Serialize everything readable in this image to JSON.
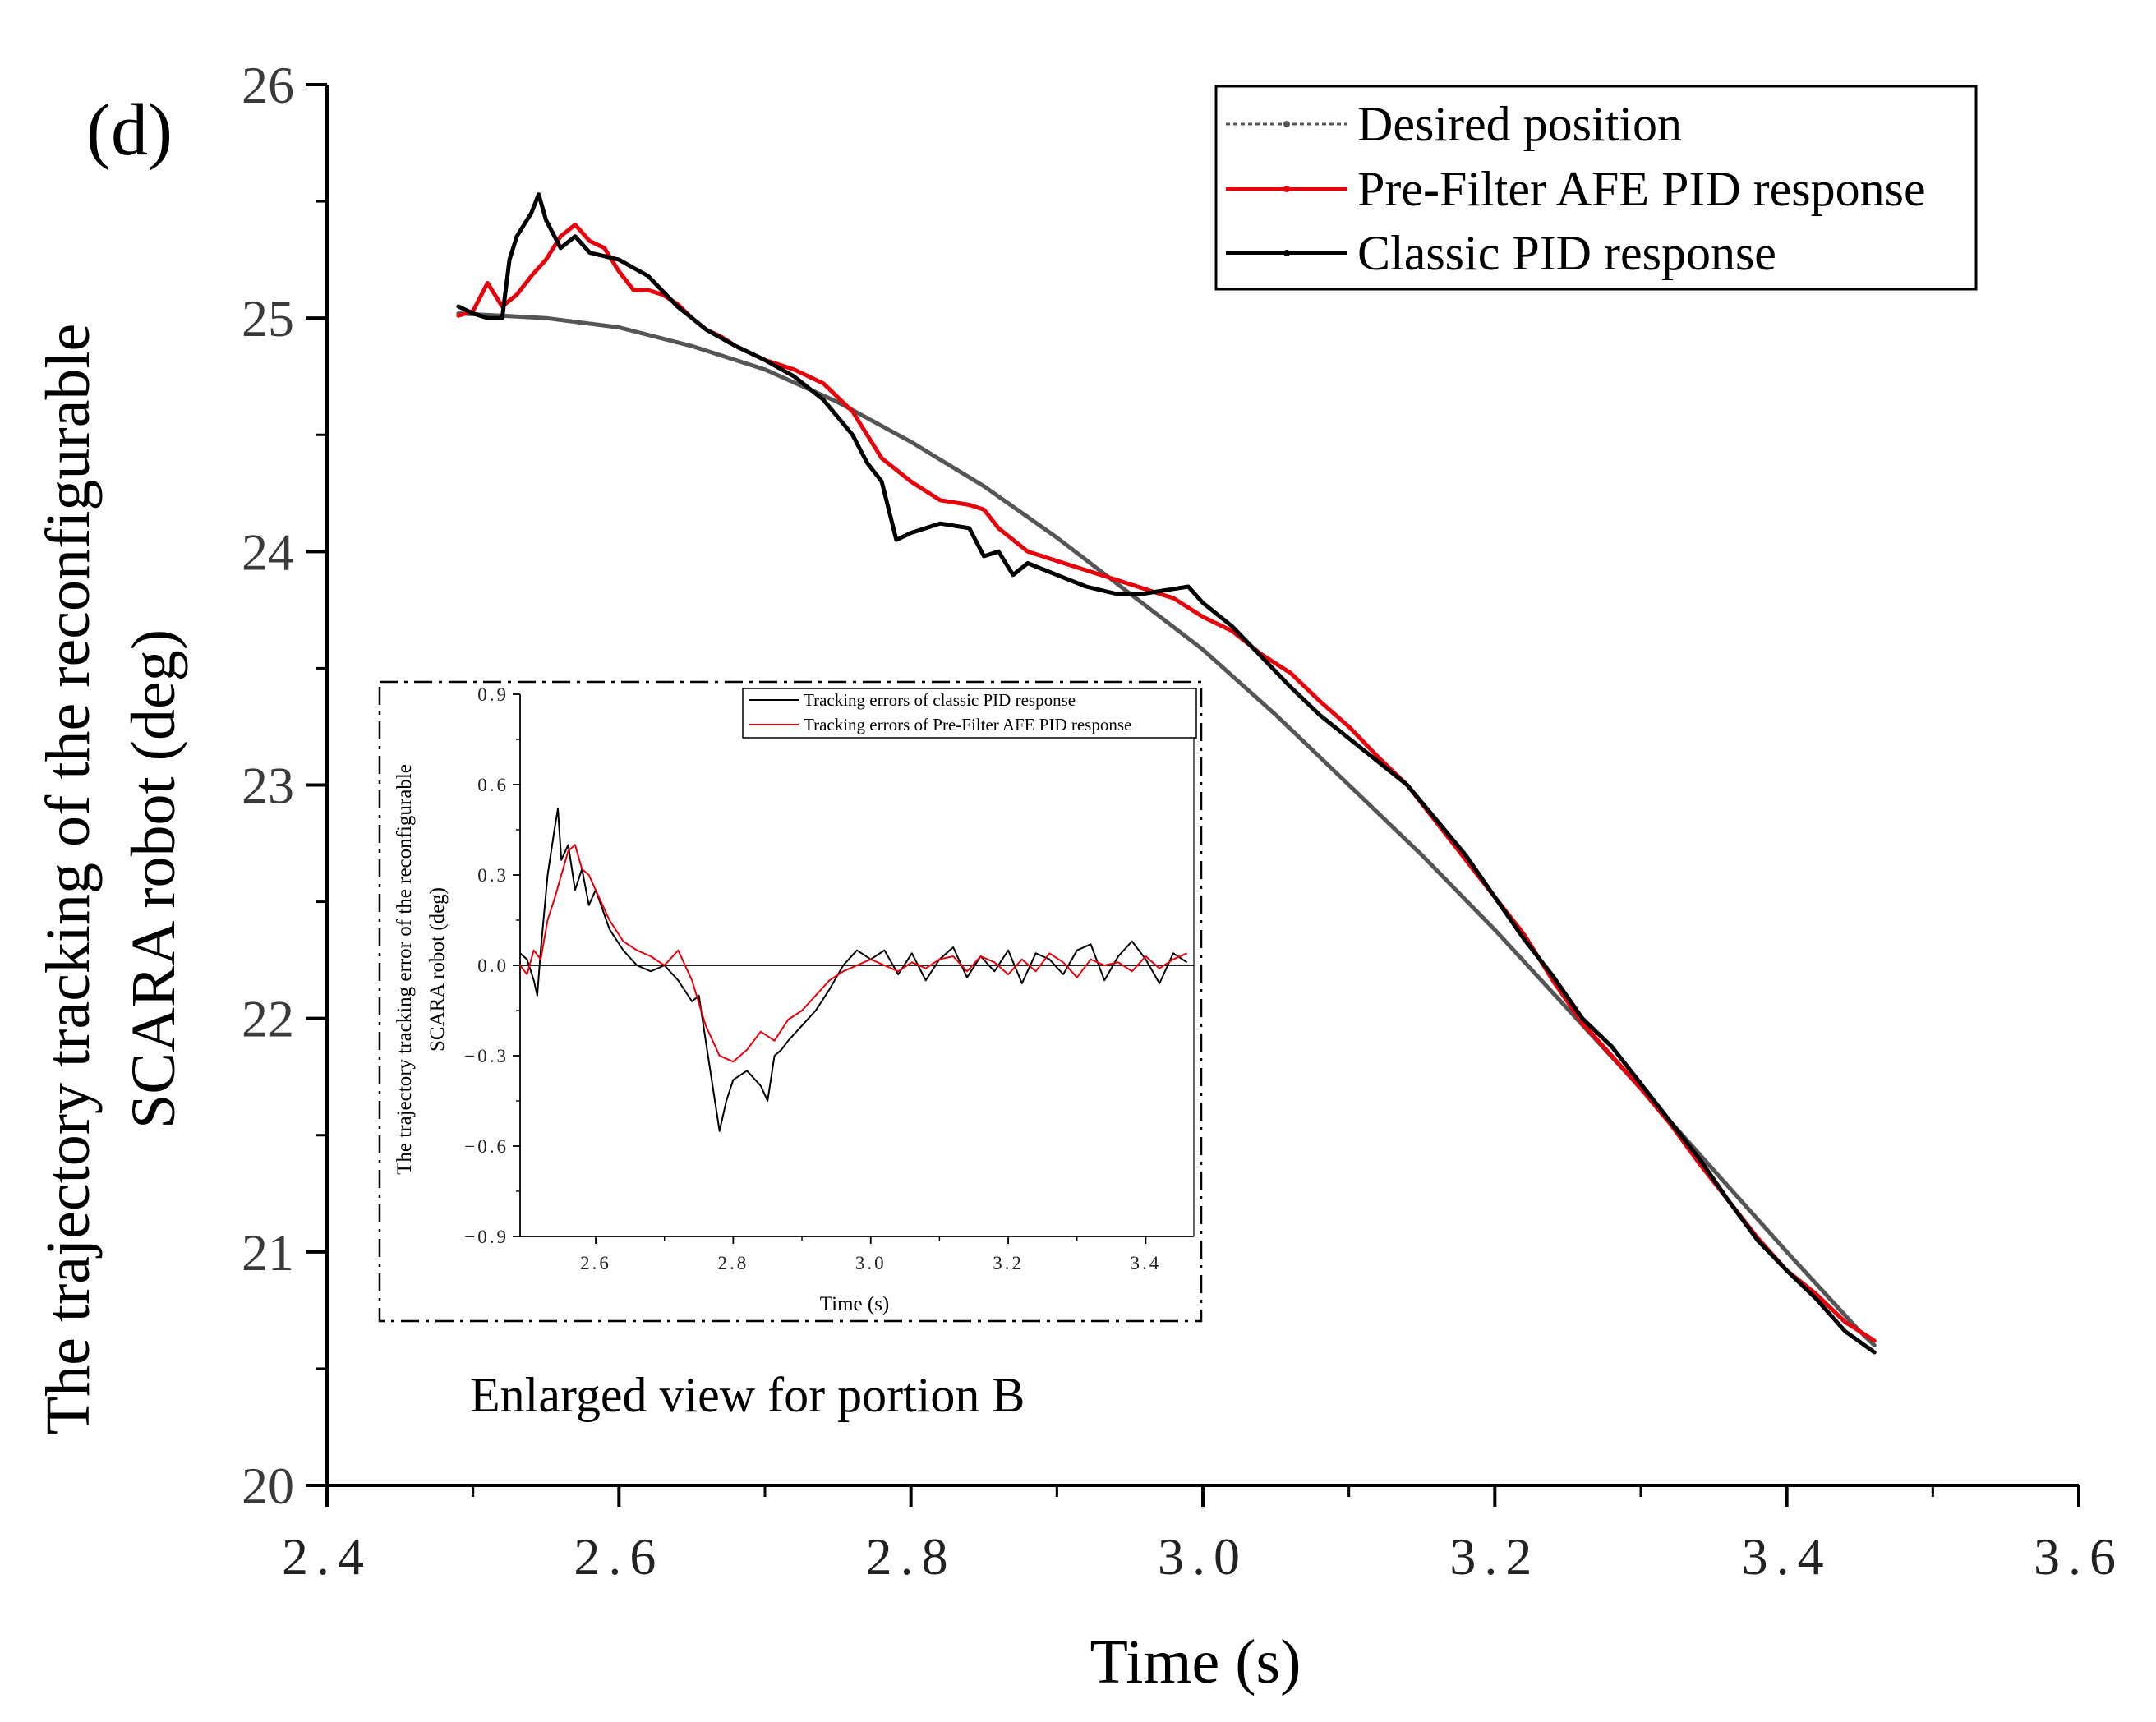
{
  "chart_data": [
    {
      "type": "line",
      "panel_label": "(d)",
      "title": "",
      "xlabel": "Time (s)",
      "ylabel_lines": [
        "The trajectory tracking of the reconfigurable",
        "SCARA robot (deg)"
      ],
      "xlim": [
        2.4,
        3.6
      ],
      "ylim": [
        20,
        26
      ],
      "xticks": [
        2.4,
        2.6,
        2.8,
        3.0,
        3.2,
        3.4,
        3.6
      ],
      "xtick_labels": [
        "2.4",
        "2.6",
        "2.8",
        "3.0",
        "3.2",
        "3.4",
        "3.6"
      ],
      "yticks": [
        20,
        21,
        22,
        23,
        24,
        25,
        26
      ],
      "ytick_labels": [
        "20",
        "21",
        "22",
        "23",
        "24",
        "25",
        "26"
      ],
      "legend_position": "top-right",
      "series": [
        {
          "name": "Desired position",
          "color": "#555555",
          "style": "dotted-marker",
          "x": [
            2.49,
            2.55,
            2.6,
            2.65,
            2.7,
            2.75,
            2.8,
            2.85,
            2.9,
            2.95,
            3.0,
            3.05,
            3.1,
            3.15,
            3.2,
            3.25,
            3.3,
            3.35,
            3.4,
            3.45,
            3.46
          ],
          "y": [
            25.02,
            25.0,
            24.96,
            24.88,
            24.78,
            24.64,
            24.47,
            24.28,
            24.06,
            23.82,
            23.58,
            23.3,
            23.0,
            22.7,
            22.38,
            22.04,
            21.7,
            21.35,
            21.0,
            20.66,
            20.6
          ]
        },
        {
          "name": "Pre-Filter AFE PID response",
          "color": "#e8000b",
          "style": "solid-marker",
          "x": [
            2.49,
            2.5,
            2.51,
            2.52,
            2.53,
            2.54,
            2.55,
            2.56,
            2.57,
            2.58,
            2.59,
            2.6,
            2.61,
            2.62,
            2.63,
            2.64,
            2.65,
            2.66,
            2.67,
            2.68,
            2.69,
            2.7,
            2.72,
            2.74,
            2.76,
            2.77,
            2.78,
            2.8,
            2.82,
            2.84,
            2.85,
            2.86,
            2.88,
            2.9,
            2.92,
            2.94,
            2.96,
            2.98,
            3.0,
            3.02,
            3.04,
            3.06,
            3.08,
            3.1,
            3.12,
            3.14,
            3.16,
            3.18,
            3.2,
            3.22,
            3.24,
            3.26,
            3.28,
            3.3,
            3.32,
            3.34,
            3.36,
            3.38,
            3.4,
            3.42,
            3.44,
            3.46
          ],
          "y": [
            25.01,
            25.03,
            25.15,
            25.05,
            25.1,
            25.18,
            25.25,
            25.35,
            25.4,
            25.33,
            25.3,
            25.2,
            25.12,
            25.12,
            25.1,
            25.06,
            25.0,
            24.95,
            24.92,
            24.88,
            24.85,
            24.82,
            24.78,
            24.72,
            24.6,
            24.5,
            24.4,
            24.3,
            24.22,
            24.2,
            24.18,
            24.1,
            24.0,
            23.96,
            23.92,
            23.88,
            23.84,
            23.8,
            23.72,
            23.66,
            23.56,
            23.48,
            23.36,
            23.25,
            23.12,
            23.0,
            22.84,
            22.68,
            22.52,
            22.36,
            22.16,
            21.98,
            21.84,
            21.7,
            21.55,
            21.38,
            21.22,
            21.06,
            20.92,
            20.82,
            20.7,
            20.62
          ]
        },
        {
          "name": "Classic PID response",
          "color": "#000000",
          "style": "solid-marker",
          "x": [
            2.49,
            2.5,
            2.51,
            2.52,
            2.525,
            2.53,
            2.54,
            2.545,
            2.55,
            2.56,
            2.57,
            2.58,
            2.6,
            2.62,
            2.64,
            2.66,
            2.68,
            2.7,
            2.72,
            2.74,
            2.76,
            2.77,
            2.78,
            2.79,
            2.8,
            2.82,
            2.84,
            2.85,
            2.86,
            2.87,
            2.88,
            2.9,
            2.92,
            2.94,
            2.96,
            2.98,
            2.99,
            3.0,
            3.02,
            3.04,
            3.06,
            3.08,
            3.1,
            3.12,
            3.14,
            3.16,
            3.18,
            3.2,
            3.22,
            3.24,
            3.26,
            3.28,
            3.3,
            3.32,
            3.34,
            3.36,
            3.38,
            3.4,
            3.42,
            3.44,
            3.46
          ],
          "y": [
            25.05,
            25.02,
            25.0,
            25.0,
            25.25,
            25.35,
            25.45,
            25.53,
            25.42,
            25.3,
            25.35,
            25.28,
            25.25,
            25.18,
            25.05,
            24.95,
            24.88,
            24.82,
            24.75,
            24.65,
            24.5,
            24.38,
            24.3,
            24.05,
            24.08,
            24.12,
            24.1,
            23.98,
            24.0,
            23.9,
            23.95,
            23.9,
            23.85,
            23.82,
            23.82,
            23.84,
            23.85,
            23.78,
            23.68,
            23.55,
            23.42,
            23.3,
            23.2,
            23.1,
            23.0,
            22.85,
            22.7,
            22.52,
            22.34,
            22.18,
            22.0,
            21.88,
            21.72,
            21.56,
            21.4,
            21.22,
            21.05,
            20.92,
            20.8,
            20.66,
            20.57
          ]
        }
      ]
    },
    {
      "type": "line",
      "title": "",
      "xlabel": "Time (s)",
      "ylabel_lines": [
        "The trajectory tracking error of the reconfigurable",
        "SCARA robot (deg)"
      ],
      "xlim": [
        2.49,
        3.47
      ],
      "ylim": [
        -0.9,
        0.9
      ],
      "xticks": [
        2.6,
        2.8,
        3.0,
        3.2,
        3.4
      ],
      "xtick_labels": [
        "2.6",
        "2.8",
        "3.0",
        "3.2",
        "3.4"
      ],
      "yticks": [
        -0.9,
        -0.6,
        -0.3,
        0.0,
        0.3,
        0.6,
        0.9
      ],
      "ytick_labels": [
        "−0.9",
        "−0.6",
        "−0.3",
        "0.0",
        "0.3",
        "0.6",
        "0.9"
      ],
      "legend_position": "top-right",
      "series": [
        {
          "name": "Tracking errors of classic PID response",
          "color": "#000000",
          "x": [
            2.49,
            2.5,
            2.51,
            2.515,
            2.52,
            2.53,
            2.54,
            2.545,
            2.55,
            2.56,
            2.57,
            2.58,
            2.59,
            2.6,
            2.62,
            2.64,
            2.66,
            2.68,
            2.7,
            2.72,
            2.74,
            2.75,
            2.76,
            2.77,
            2.78,
            2.79,
            2.8,
            2.82,
            2.84,
            2.85,
            2.86,
            2.87,
            2.88,
            2.9,
            2.92,
            2.94,
            2.96,
            2.98,
            3.0,
            3.02,
            3.04,
            3.06,
            3.08,
            3.1,
            3.12,
            3.14,
            3.16,
            3.18,
            3.2,
            3.22,
            3.24,
            3.26,
            3.28,
            3.3,
            3.32,
            3.34,
            3.36,
            3.38,
            3.4,
            3.42,
            3.44,
            3.46
          ],
          "y": [
            0.04,
            0.02,
            -0.05,
            -0.1,
            0.05,
            0.3,
            0.45,
            0.52,
            0.35,
            0.4,
            0.25,
            0.32,
            0.2,
            0.25,
            0.12,
            0.05,
            0.0,
            -0.02,
            0.0,
            -0.05,
            -0.12,
            -0.1,
            -0.25,
            -0.4,
            -0.55,
            -0.45,
            -0.38,
            -0.35,
            -0.4,
            -0.45,
            -0.3,
            -0.28,
            -0.25,
            -0.2,
            -0.15,
            -0.08,
            0.0,
            0.05,
            0.02,
            0.05,
            -0.03,
            0.04,
            -0.05,
            0.02,
            0.06,
            -0.04,
            0.03,
            -0.02,
            0.05,
            -0.06,
            0.04,
            0.02,
            -0.03,
            0.05,
            0.07,
            -0.05,
            0.03,
            0.08,
            0.02,
            -0.06,
            0.04,
            0.01
          ]
        },
        {
          "name": "Tracking errors of Pre-Filter AFE PID response",
          "color": "#e8000b",
          "x": [
            2.49,
            2.5,
            2.51,
            2.52,
            2.53,
            2.54,
            2.55,
            2.56,
            2.57,
            2.58,
            2.59,
            2.6,
            2.62,
            2.64,
            2.66,
            2.68,
            2.7,
            2.72,
            2.74,
            2.76,
            2.78,
            2.8,
            2.82,
            2.84,
            2.86,
            2.88,
            2.9,
            2.92,
            2.94,
            2.96,
            2.98,
            3.0,
            3.02,
            3.04,
            3.06,
            3.08,
            3.1,
            3.12,
            3.14,
            3.16,
            3.18,
            3.2,
            3.22,
            3.24,
            3.26,
            3.28,
            3.3,
            3.32,
            3.34,
            3.36,
            3.38,
            3.4,
            3.42,
            3.44,
            3.46
          ],
          "y": [
            0.0,
            -0.03,
            0.05,
            0.02,
            0.15,
            0.22,
            0.3,
            0.38,
            0.4,
            0.32,
            0.3,
            0.25,
            0.15,
            0.08,
            0.05,
            0.03,
            0.0,
            0.05,
            -0.05,
            -0.2,
            -0.3,
            -0.32,
            -0.28,
            -0.22,
            -0.25,
            -0.18,
            -0.15,
            -0.1,
            -0.05,
            -0.02,
            0.0,
            0.02,
            0.0,
            -0.02,
            0.01,
            -0.01,
            0.02,
            0.03,
            -0.02,
            0.03,
            0.01,
            -0.03,
            0.02,
            -0.02,
            0.04,
            0.01,
            -0.04,
            0.02,
            0.0,
            0.01,
            -0.02,
            0.03,
            -0.01,
            0.02,
            0.04
          ]
        }
      ],
      "caption": "Enlarged view for portion B"
    }
  ]
}
